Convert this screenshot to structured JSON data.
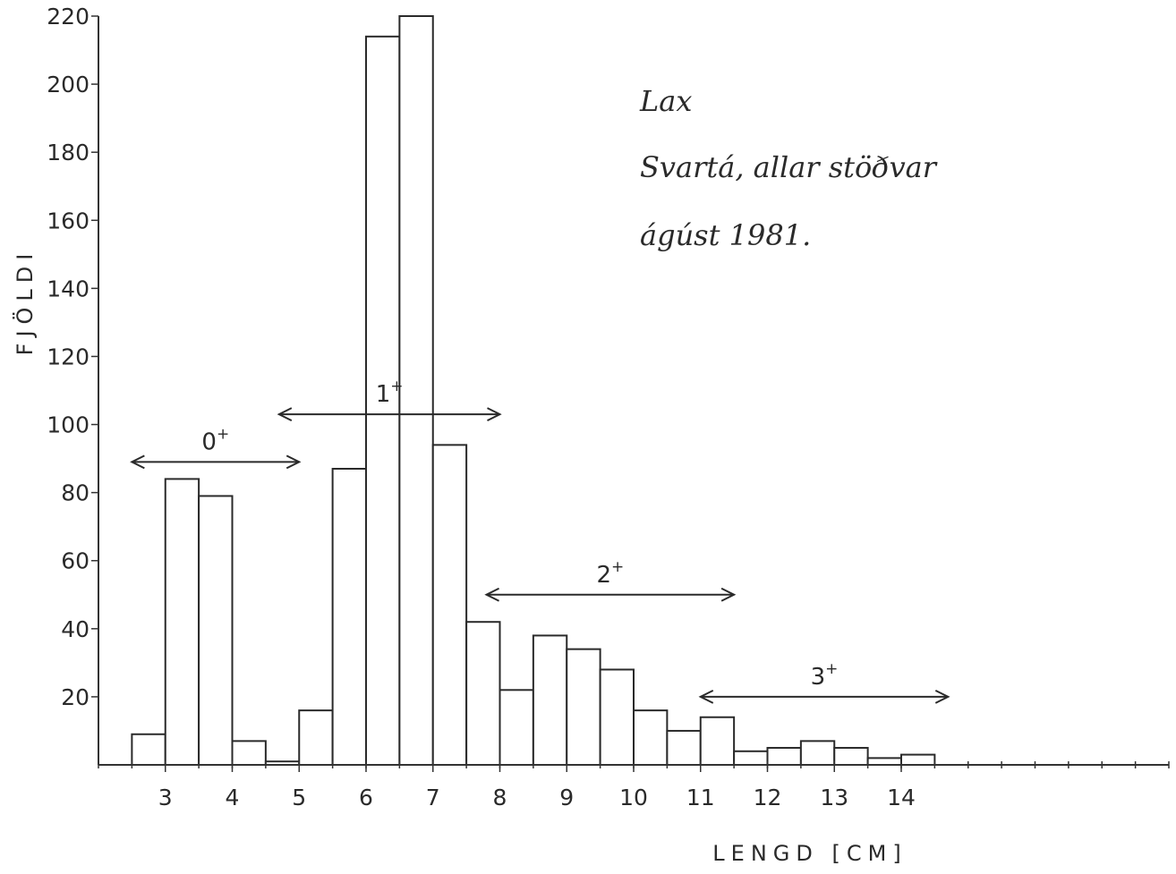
{
  "chart_data": {
    "type": "bar",
    "xlabel": "LENGD [CM]",
    "ylabel": "FJÖLDI",
    "ylim": [
      0,
      220
    ],
    "yticks": [
      20,
      40,
      60,
      80,
      100,
      120,
      140,
      160,
      180,
      200,
      220
    ],
    "xticks": [
      3,
      4,
      5,
      6,
      7,
      8,
      9,
      10,
      11,
      12,
      13,
      14
    ],
    "xlim": [
      2.0,
      18.0
    ],
    "bin_width": 0.5,
    "bins": [
      {
        "start": 2.5,
        "value": 9
      },
      {
        "start": 3.0,
        "value": 84
      },
      {
        "start": 3.5,
        "value": 79
      },
      {
        "start": 4.0,
        "value": 7
      },
      {
        "start": 4.5,
        "value": 1
      },
      {
        "start": 5.0,
        "value": 16
      },
      {
        "start": 5.5,
        "value": 87
      },
      {
        "start": 6.0,
        "value": 214
      },
      {
        "start": 6.5,
        "value": 220
      },
      {
        "start": 7.0,
        "value": 94
      },
      {
        "start": 7.5,
        "value": 42
      },
      {
        "start": 8.0,
        "value": 22
      },
      {
        "start": 8.5,
        "value": 38
      },
      {
        "start": 9.0,
        "value": 34
      },
      {
        "start": 9.5,
        "value": 28
      },
      {
        "start": 10.0,
        "value": 16
      },
      {
        "start": 10.5,
        "value": 10
      },
      {
        "start": 11.0,
        "value": 14
      },
      {
        "start": 11.5,
        "value": 4
      },
      {
        "start": 12.0,
        "value": 5
      },
      {
        "start": 12.5,
        "value": 7
      },
      {
        "start": 13.0,
        "value": 5
      },
      {
        "start": 13.5,
        "value": 2
      },
      {
        "start": 14.0,
        "value": 3
      }
    ],
    "annotations": [
      {
        "label": "0",
        "sup": "+",
        "from": 2.5,
        "to": 5.0,
        "y": 89
      },
      {
        "label": "1",
        "sup": "+",
        "from": 4.7,
        "to": 8.0,
        "y": 103
      },
      {
        "label": "2",
        "sup": "+",
        "from": 7.8,
        "to": 11.5,
        "y": 50
      },
      {
        "label": "3",
        "sup": "+",
        "from": 11.0,
        "to": 14.7,
        "y": 20
      }
    ],
    "note_lines": [
      "Lax",
      "Svartá, allar stöðvar",
      "ágúst 1981."
    ],
    "grid": false
  }
}
